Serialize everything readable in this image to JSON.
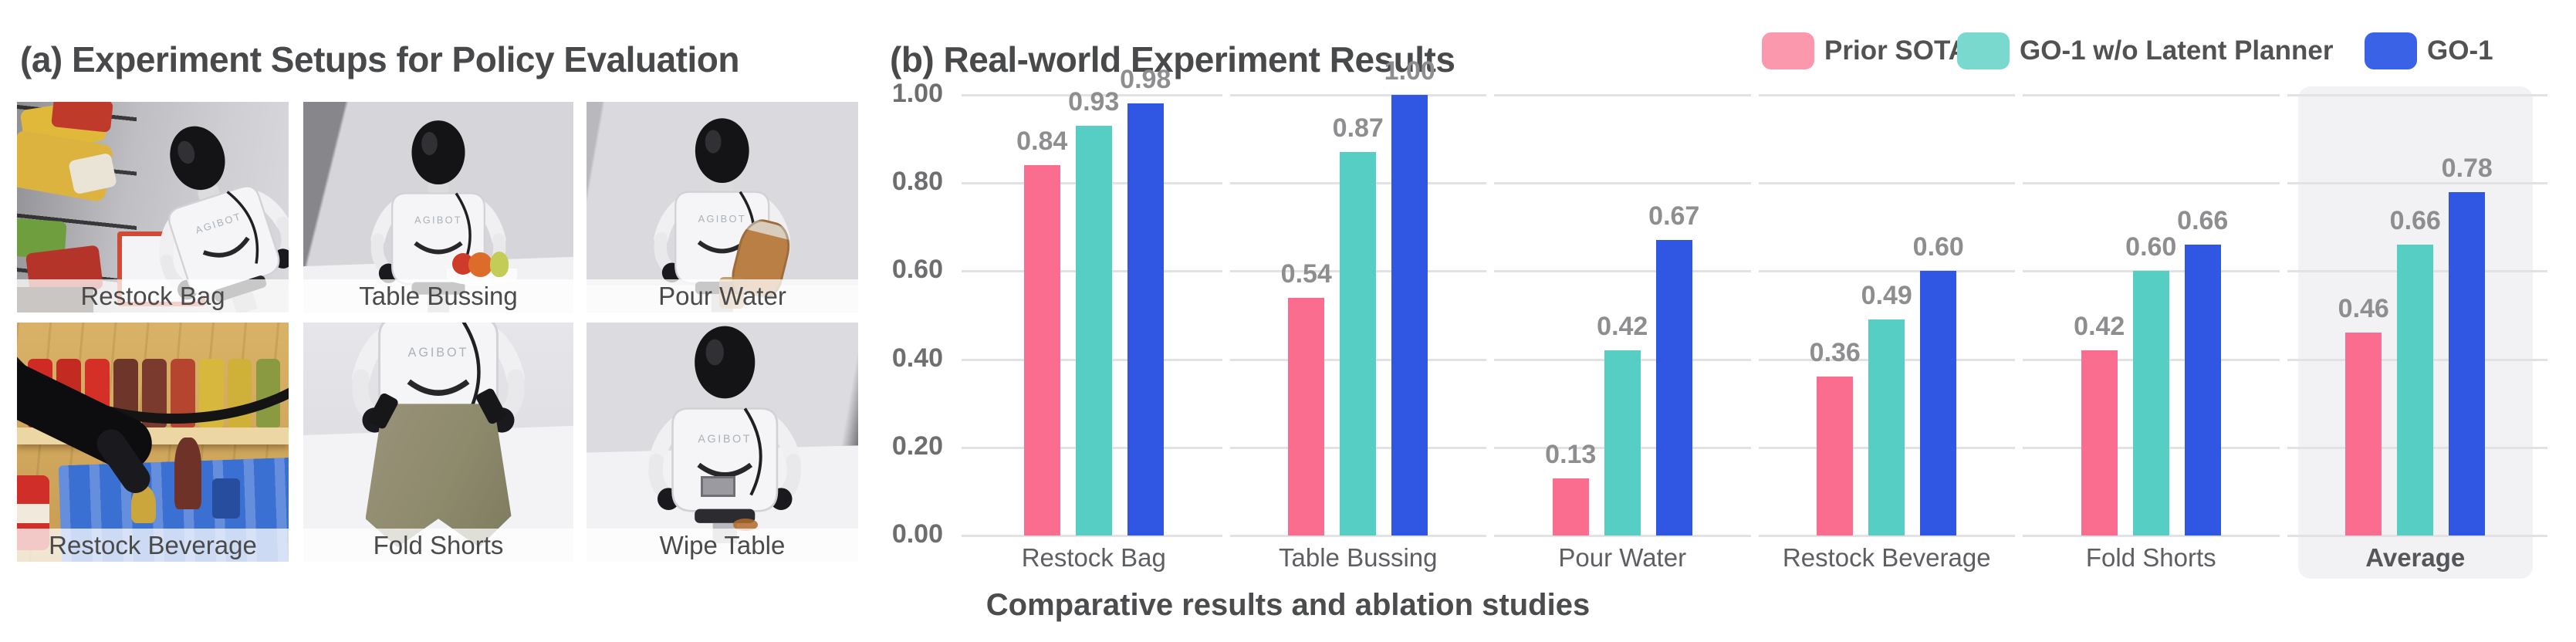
{
  "panel_a": {
    "title": "(a) Experiment Setups for Policy Evaluation",
    "robot_brand": "AGIBOT",
    "photos": [
      {
        "label": "Restock Bag"
      },
      {
        "label": "Table Bussing"
      },
      {
        "label": "Pour Water"
      },
      {
        "label": "Restock Beverage"
      },
      {
        "label": "Fold Shorts"
      },
      {
        "label": "Wipe Table"
      }
    ]
  },
  "panel_b": {
    "title": "(b) Real-world Experiment Results",
    "caption": "Comparative results and ablation studies",
    "legend": [
      {
        "label": "Prior SOTA",
        "color": "#FC98AE"
      },
      {
        "label": "GO-1 w/o Latent Planner",
        "color": "#7AD9CF"
      },
      {
        "label": "GO-1",
        "color": "#3A62E6"
      }
    ]
  },
  "chart_data": {
    "type": "bar",
    "title": "(b) Real-world Experiment Results",
    "caption": "Comparative results and ablation studies",
    "categories": [
      "Restock Bag",
      "Table Bussing",
      "Pour Water",
      "Restock Beverage",
      "Fold Shorts",
      "Average"
    ],
    "series": [
      {
        "name": "Prior SOTA",
        "color": "#FA6D8F",
        "values": [
          0.84,
          0.54,
          0.13,
          0.36,
          0.42,
          0.46
        ]
      },
      {
        "name": "GO-1 w/o Latent Planner",
        "color": "#57CEC3",
        "values": [
          0.93,
          0.87,
          0.42,
          0.49,
          0.6,
          0.66
        ]
      },
      {
        "name": "GO-1",
        "color": "#3057E3",
        "values": [
          0.98,
          1.0,
          0.67,
          0.6,
          0.66,
          0.78
        ]
      }
    ],
    "ylim": [
      0,
      1.0
    ],
    "y_ticks": [
      "0.00",
      "0.20",
      "0.40",
      "0.60",
      "0.80",
      "1.00"
    ],
    "grid": "horizontal-segmented-per-category",
    "legend_position": "top-right",
    "value_labels": true,
    "highlight_category": "Average"
  }
}
